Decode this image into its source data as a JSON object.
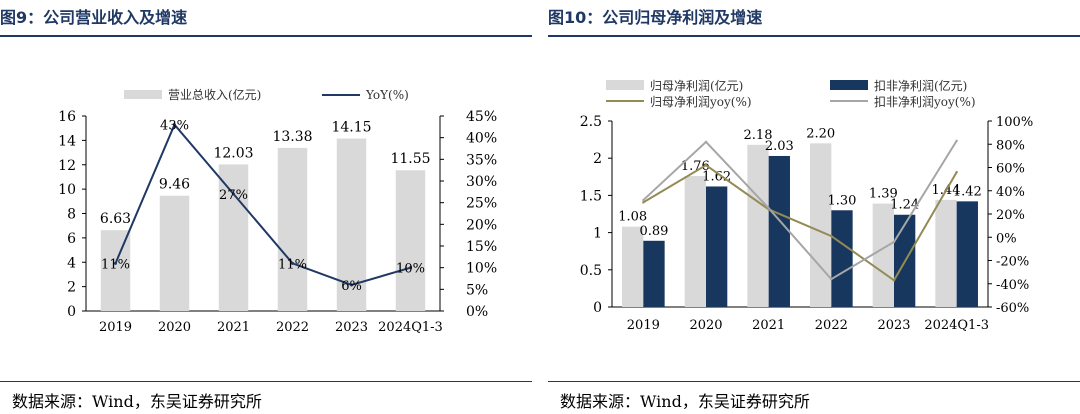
{
  "left": {
    "title": "图9：公司营业收入及增速",
    "source": "数据来源：Wind，东吴证券研究所"
  },
  "right": {
    "title": "图10：公司归母净利润及增速",
    "source": "数据来源：Wind，东吴证券研究所"
  },
  "colors": {
    "title_blue": "#1f3864",
    "bar_gray": "#d9d9d9",
    "bar_navy": "#17375e",
    "line_navy": "#1f3864",
    "line_olive": "#948a54",
    "line_gray": "#a6a6a6"
  },
  "chart_data": [
    {
      "type": "bar",
      "categories": [
        "2019",
        "2020",
        "2021",
        "2022",
        "2023",
        "2024Q1-3"
      ],
      "series": [
        {
          "name": "营业总收入(亿元)",
          "kind": "bar",
          "axis": "left",
          "values": [
            6.63,
            9.46,
            12.03,
            13.38,
            14.15,
            11.55
          ],
          "labels": [
            "6.63",
            "9.46",
            "12.03",
            "13.38",
            "14.15",
            "11.55"
          ]
        },
        {
          "name": "YoY(%)",
          "kind": "line",
          "axis": "right",
          "values": [
            11,
            43,
            27,
            11,
            6,
            10
          ],
          "labels": [
            "11%",
            "43%",
            "27%",
            "11%",
            "6%",
            "10%"
          ]
        }
      ],
      "ylim": [
        0,
        16
      ],
      "yticks": [
        "0",
        "2",
        "4",
        "6",
        "8",
        "10",
        "12",
        "14",
        "16"
      ],
      "y2lim": [
        0,
        45
      ],
      "y2ticks": [
        "0%",
        "5%",
        "10%",
        "15%",
        "20%",
        "25%",
        "30%",
        "35%",
        "40%",
        "45%"
      ],
      "legend": "top"
    },
    {
      "type": "bar",
      "categories": [
        "2019",
        "2020",
        "2021",
        "2022",
        "2023",
        "2024Q1-3"
      ],
      "series": [
        {
          "name": "归母净利润(亿元)",
          "kind": "bar",
          "axis": "left",
          "values": [
            1.08,
            1.76,
            2.18,
            2.2,
            1.39,
            1.44
          ],
          "labels": [
            "1.08",
            "1.76",
            "2.18",
            "2.20",
            "1.39",
            "1.44"
          ]
        },
        {
          "name": "扣非净利润(亿元)",
          "kind": "bar",
          "axis": "left",
          "values": [
            0.89,
            1.62,
            2.03,
            1.3,
            1.24,
            1.42
          ],
          "labels": [
            "0.89",
            "1.62",
            "2.03",
            "1.30",
            "1.24",
            "1.42"
          ]
        },
        {
          "name": "归母净利润yoy(%)",
          "kind": "line",
          "axis": "right",
          "values": [
            30,
            62,
            24,
            1,
            -37,
            56
          ]
        },
        {
          "name": "扣非净利润yoy(%)",
          "kind": "line",
          "axis": "right",
          "values": [
            32,
            82,
            25,
            -36,
            -4,
            83
          ]
        }
      ],
      "ylim": [
        0,
        2.5
      ],
      "yticks": [
        "0",
        "0.5",
        "1",
        "1.5",
        "2",
        "2.5"
      ],
      "y2lim": [
        -60,
        100
      ],
      "y2ticks": [
        "-60%",
        "-40%",
        "-20%",
        "0%",
        "20%",
        "40%",
        "60%",
        "80%",
        "100%"
      ],
      "legend": "top"
    }
  ]
}
